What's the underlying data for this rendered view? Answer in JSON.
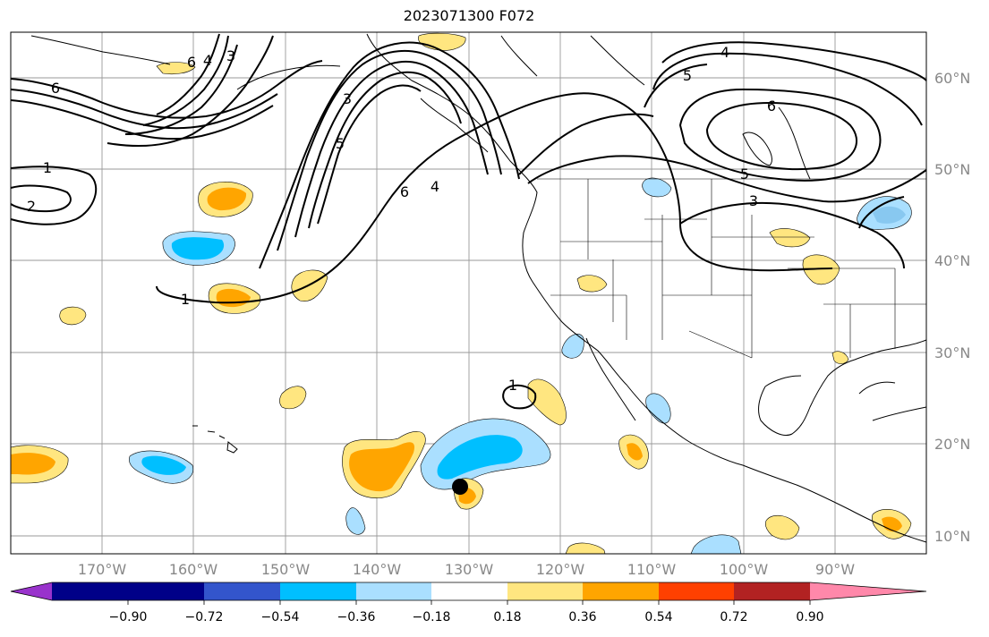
{
  "title": "2023071300 F072",
  "map": {
    "lon_ticks": [
      "170°W",
      "160°W",
      "150°W",
      "140°W",
      "130°W",
      "120°W",
      "110°W",
      "100°W",
      "90°W"
    ],
    "lat_ticks": [
      "60°N",
      "50°N",
      "40°N",
      "30°N",
      "20°N",
      "10°N"
    ],
    "contour_labels": [
      "6",
      "1",
      "2",
      "1",
      "6",
      "4",
      "3",
      "3",
      "5",
      "6",
      "4",
      "4",
      "5",
      "6",
      "5",
      "3",
      "1"
    ],
    "marker": "storm-center-dot"
  },
  "colorbar": {
    "colors": [
      "#9933cc",
      "#000088",
      "#3355cc",
      "#00bfff",
      "#aadfff",
      "#ffffff",
      "#ffe680",
      "#ffa500",
      "#ff4000",
      "#b22222",
      "#ff88aa"
    ],
    "tick_labels": [
      "−0.90",
      "−0.72",
      "−0.54",
      "−0.36",
      "−0.18",
      "0.18",
      "0.36",
      "0.54",
      "0.72",
      "0.90"
    ]
  }
}
